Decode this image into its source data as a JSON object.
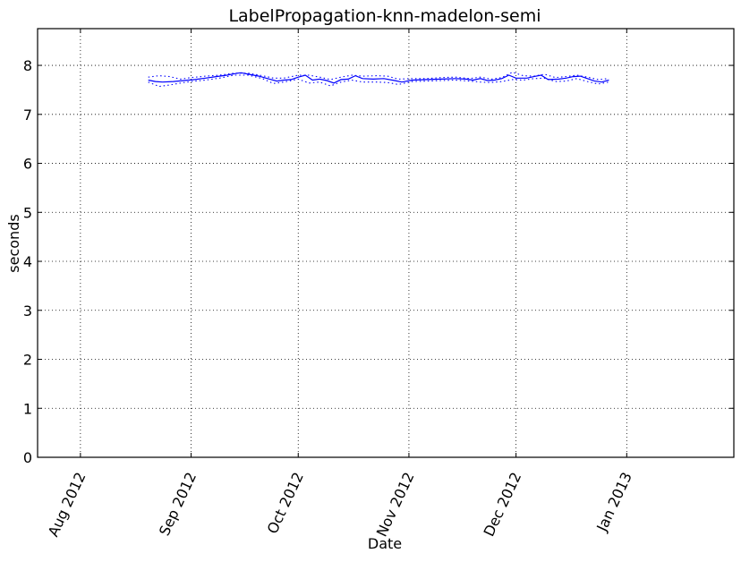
{
  "chart_data": {
    "type": "line",
    "title": "LabelPropagation-knn-madelon-semi",
    "xlabel": "Date",
    "ylabel": "seconds",
    "xlim": [
      "2012-07-20",
      "2013-01-31"
    ],
    "ylim": [
      0,
      8.75
    ],
    "grid": true,
    "x_ticks": [
      "2012-08-01",
      "2012-09-01",
      "2012-10-01",
      "2012-11-01",
      "2012-12-01",
      "2013-01-01"
    ],
    "x_tick_labels": [
      "Aug 2012",
      "Sep 2012",
      "Oct 2012",
      "Nov 2012",
      "Dec 2012",
      "Jan 2013"
    ],
    "y_ticks": [
      0,
      1,
      2,
      3,
      4,
      5,
      6,
      7,
      8
    ],
    "y_tick_labels": [
      "0",
      "1",
      "2",
      "3",
      "4",
      "5",
      "6",
      "7",
      "8"
    ],
    "series": [
      {
        "style": "solid",
        "color": "#0000ff",
        "points": [
          [
            "2012-08-20",
            7.7
          ],
          [
            "2012-08-22",
            7.67
          ],
          [
            "2012-08-24",
            7.66
          ],
          [
            "2012-08-27",
            7.67
          ],
          [
            "2012-08-30",
            7.69
          ],
          [
            "2012-09-02",
            7.71
          ],
          [
            "2012-09-05",
            7.74
          ],
          [
            "2012-09-08",
            7.77
          ],
          [
            "2012-09-11",
            7.8
          ],
          [
            "2012-09-14",
            7.84
          ],
          [
            "2012-09-15",
            7.85
          ],
          [
            "2012-09-17",
            7.82
          ],
          [
            "2012-09-20",
            7.78
          ],
          [
            "2012-09-23",
            7.72
          ],
          [
            "2012-09-25",
            7.68
          ],
          [
            "2012-09-27",
            7.7
          ],
          [
            "2012-09-29",
            7.71
          ],
          [
            "2012-10-01",
            7.76
          ],
          [
            "2012-10-03",
            7.8
          ],
          [
            "2012-10-05",
            7.7
          ],
          [
            "2012-10-07",
            7.72
          ],
          [
            "2012-10-09",
            7.69
          ],
          [
            "2012-10-11",
            7.64
          ],
          [
            "2012-10-13",
            7.71
          ],
          [
            "2012-10-15",
            7.72
          ],
          [
            "2012-10-17",
            7.79
          ],
          [
            "2012-10-19",
            7.73
          ],
          [
            "2012-10-22",
            7.72
          ],
          [
            "2012-10-25",
            7.73
          ],
          [
            "2012-10-28",
            7.69
          ],
          [
            "2012-10-30",
            7.66
          ],
          [
            "2012-11-02",
            7.7
          ],
          [
            "2012-11-06",
            7.71
          ],
          [
            "2012-11-10",
            7.72
          ],
          [
            "2012-11-14",
            7.73
          ],
          [
            "2012-11-17",
            7.72
          ],
          [
            "2012-11-19",
            7.7
          ],
          [
            "2012-11-21",
            7.73
          ],
          [
            "2012-11-23",
            7.69
          ],
          [
            "2012-11-25",
            7.7
          ],
          [
            "2012-11-27",
            7.73
          ],
          [
            "2012-11-29",
            7.8
          ],
          [
            "2012-12-01",
            7.74
          ],
          [
            "2012-12-04",
            7.74
          ],
          [
            "2012-12-06",
            7.77
          ],
          [
            "2012-12-08",
            7.8
          ],
          [
            "2012-12-10",
            7.71
          ],
          [
            "2012-12-13",
            7.72
          ],
          [
            "2012-12-15",
            7.74
          ],
          [
            "2012-12-17",
            7.77
          ],
          [
            "2012-12-19",
            7.78
          ],
          [
            "2012-12-21",
            7.73
          ],
          [
            "2012-12-23",
            7.68
          ],
          [
            "2012-12-25",
            7.66
          ],
          [
            "2012-12-27",
            7.7
          ]
        ]
      },
      {
        "style": "dotted",
        "color": "#0000ff",
        "points": [
          [
            "2012-08-20",
            7.76
          ],
          [
            "2012-08-23",
            7.79
          ],
          [
            "2012-08-26",
            7.77
          ],
          [
            "2012-08-29",
            7.72
          ],
          [
            "2012-09-01",
            7.75
          ],
          [
            "2012-09-05",
            7.78
          ],
          [
            "2012-09-09",
            7.8
          ],
          [
            "2012-09-13",
            7.84
          ],
          [
            "2012-09-17",
            7.84
          ],
          [
            "2012-09-21",
            7.79
          ],
          [
            "2012-09-24",
            7.74
          ],
          [
            "2012-09-27",
            7.74
          ],
          [
            "2012-10-01",
            7.8
          ],
          [
            "2012-10-04",
            7.8
          ],
          [
            "2012-10-07",
            7.76
          ],
          [
            "2012-10-10",
            7.71
          ],
          [
            "2012-10-13",
            7.76
          ],
          [
            "2012-10-16",
            7.8
          ],
          [
            "2012-10-19",
            7.78
          ],
          [
            "2012-10-23",
            7.79
          ],
          [
            "2012-10-26",
            7.78
          ],
          [
            "2012-10-29",
            7.72
          ],
          [
            "2012-11-02",
            7.73
          ],
          [
            "2012-11-06",
            7.73
          ],
          [
            "2012-11-10",
            7.75
          ],
          [
            "2012-11-14",
            7.76
          ],
          [
            "2012-11-18",
            7.73
          ],
          [
            "2012-11-21",
            7.76
          ],
          [
            "2012-11-24",
            7.72
          ],
          [
            "2012-11-27",
            7.75
          ],
          [
            "2012-11-30",
            7.86
          ],
          [
            "2012-12-03",
            7.79
          ],
          [
            "2012-12-06",
            7.78
          ],
          [
            "2012-12-09",
            7.82
          ],
          [
            "2012-12-12",
            7.75
          ],
          [
            "2012-12-15",
            7.77
          ],
          [
            "2012-12-18",
            7.8
          ],
          [
            "2012-12-21",
            7.76
          ],
          [
            "2012-12-24",
            7.71
          ],
          [
            "2012-12-27",
            7.73
          ]
        ]
      },
      {
        "style": "dotted",
        "color": "#0000ff",
        "points": [
          [
            "2012-08-20",
            7.66
          ],
          [
            "2012-08-23",
            7.57
          ],
          [
            "2012-08-26",
            7.6
          ],
          [
            "2012-08-29",
            7.64
          ],
          [
            "2012-09-01",
            7.67
          ],
          [
            "2012-09-05",
            7.7
          ],
          [
            "2012-09-09",
            7.74
          ],
          [
            "2012-09-13",
            7.8
          ],
          [
            "2012-09-17",
            7.8
          ],
          [
            "2012-09-21",
            7.73
          ],
          [
            "2012-09-24",
            7.63
          ],
          [
            "2012-09-27",
            7.66
          ],
          [
            "2012-10-01",
            7.72
          ],
          [
            "2012-10-04",
            7.64
          ],
          [
            "2012-10-07",
            7.66
          ],
          [
            "2012-10-10",
            7.58
          ],
          [
            "2012-10-13",
            7.66
          ],
          [
            "2012-10-16",
            7.7
          ],
          [
            "2012-10-19",
            7.66
          ],
          [
            "2012-10-23",
            7.66
          ],
          [
            "2012-10-26",
            7.65
          ],
          [
            "2012-10-29",
            7.61
          ],
          [
            "2012-11-02",
            7.67
          ],
          [
            "2012-11-06",
            7.68
          ],
          [
            "2012-11-10",
            7.69
          ],
          [
            "2012-11-14",
            7.7
          ],
          [
            "2012-11-18",
            7.68
          ],
          [
            "2012-11-21",
            7.66
          ],
          [
            "2012-11-24",
            7.65
          ],
          [
            "2012-11-27",
            7.67
          ],
          [
            "2012-11-30",
            7.71
          ],
          [
            "2012-12-03",
            7.7
          ],
          [
            "2012-12-06",
            7.73
          ],
          [
            "2012-12-09",
            7.74
          ],
          [
            "2012-12-12",
            7.67
          ],
          [
            "2012-12-15",
            7.68
          ],
          [
            "2012-12-18",
            7.73
          ],
          [
            "2012-12-21",
            7.67
          ],
          [
            "2012-12-24",
            7.62
          ],
          [
            "2012-12-27",
            7.66
          ]
        ]
      }
    ]
  }
}
